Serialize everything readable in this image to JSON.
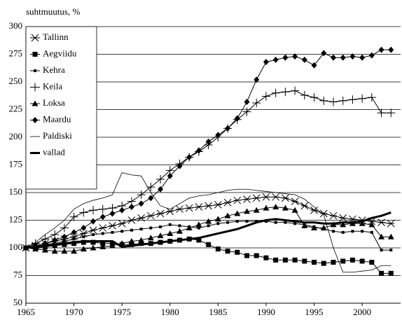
{
  "chart_data": {
    "type": "line",
    "y_label": "suhtmuutus, %",
    "x": [
      1965,
      1966,
      1967,
      1968,
      1969,
      1970,
      1971,
      1972,
      1973,
      1974,
      1975,
      1976,
      1977,
      1978,
      1979,
      1980,
      1981,
      1982,
      1983,
      1984,
      1985,
      1986,
      1987,
      1988,
      1989,
      1990,
      1991,
      1992,
      1993,
      1994,
      1995,
      1996,
      1997,
      1998,
      1999,
      2000,
      2001,
      2002,
      2003
    ],
    "xlim": [
      1965,
      2004
    ],
    "xticks": [
      1965,
      1970,
      1975,
      1980,
      1985,
      1990,
      1995,
      2000
    ],
    "ylim": [
      50,
      300
    ],
    "yticks": [
      50,
      75,
      100,
      125,
      150,
      175,
      200,
      225,
      250,
      275,
      300
    ],
    "grid": true,
    "legend": "upper left",
    "series": [
      {
        "name": "Tallinn",
        "color": "#000000",
        "marker": "asterisk",
        "width": 1,
        "values": [
          100,
          102,
          104,
          106,
          108,
          110,
          113,
          116,
          118,
          120,
          122,
          125,
          127,
          129,
          131,
          133,
          135,
          136,
          137,
          138,
          139,
          141,
          143,
          144,
          145,
          146,
          146,
          145,
          142,
          138,
          134,
          131,
          129,
          127,
          126,
          125,
          124,
          123,
          122
        ]
      },
      {
        "name": "Aegviidu",
        "color": "#000000",
        "marker": "square",
        "width": 1,
        "values": [
          100,
          100,
          101,
          102,
          103,
          104,
          105,
          105,
          104,
          104,
          103,
          103,
          104,
          104,
          105,
          106,
          107,
          108,
          107,
          103,
          99,
          97,
          96,
          93,
          93,
          91,
          89,
          89,
          89,
          88,
          87,
          86,
          87,
          88,
          89,
          88,
          87,
          77,
          77
        ]
      },
      {
        "name": "Kehra",
        "color": "#000000",
        "marker": "small-square",
        "width": 1,
        "values": [
          100,
          101,
          103,
          104,
          106,
          108,
          110,
          112,
          113,
          114,
          115,
          116,
          117,
          118,
          119,
          121,
          120,
          119,
          118,
          120,
          122,
          123,
          124,
          124,
          124,
          124,
          123,
          123,
          122,
          121,
          119,
          117,
          115,
          114,
          115,
          115,
          114,
          98,
          98
        ]
      },
      {
        "name": "Keila",
        "color": "#000000",
        "marker": "plus",
        "width": 1,
        "values": [
          100,
          104,
          108,
          112,
          118,
          128,
          132,
          134,
          135,
          136,
          138,
          142,
          148,
          155,
          162,
          170,
          176,
          182,
          187,
          193,
          200,
          208,
          216,
          223,
          231,
          237,
          240,
          241,
          242,
          238,
          236,
          233,
          232,
          233,
          234,
          235,
          236,
          222,
          222
        ]
      },
      {
        "name": "Loksa",
        "color": "#000000",
        "marker": "triangle",
        "width": 1,
        "values": [
          100,
          99,
          98,
          97,
          97,
          97,
          99,
          100,
          101,
          102,
          104,
          106,
          107,
          109,
          111,
          113,
          115,
          118,
          121,
          124,
          126,
          129,
          131,
          133,
          134,
          136,
          137,
          136,
          134,
          120,
          118,
          118,
          121,
          121,
          122,
          122,
          121,
          110,
          110
        ]
      },
      {
        "name": "Maardu",
        "color": "#000000",
        "marker": "diamond",
        "width": 1,
        "values": [
          100,
          102,
          104,
          107,
          110,
          114,
          118,
          124,
          128,
          131,
          134,
          137,
          140,
          145,
          153,
          165,
          174,
          182,
          188,
          196,
          202,
          208,
          217,
          232,
          252,
          268,
          270,
          272,
          273,
          270,
          265,
          276,
          272,
          272,
          273,
          272,
          274,
          279,
          279
        ]
      },
      {
        "name": "Paldiski",
        "color": "#000000",
        "marker": "none",
        "width": 0.8,
        "values": [
          100,
          105,
          112,
          118,
          125,
          135,
          140,
          143,
          145,
          148,
          168,
          166,
          165,
          150,
          138,
          135,
          140,
          145,
          147,
          148,
          150,
          152,
          153,
          153,
          152,
          151,
          150,
          149,
          148,
          144,
          137,
          130,
          100,
          78,
          78,
          79,
          80,
          84,
          84
        ]
      },
      {
        "name": "vallad",
        "color": "#000000",
        "marker": "none",
        "width": 3,
        "values": [
          100,
          101,
          102,
          103,
          104,
          105,
          106,
          106,
          106,
          106,
          101,
          102,
          103,
          104,
          105,
          106,
          107,
          108,
          109,
          111,
          113,
          115,
          117,
          120,
          123,
          125,
          126,
          125,
          124,
          123,
          123,
          122,
          122,
          123,
          123,
          124,
          127,
          129,
          132
        ]
      }
    ]
  }
}
